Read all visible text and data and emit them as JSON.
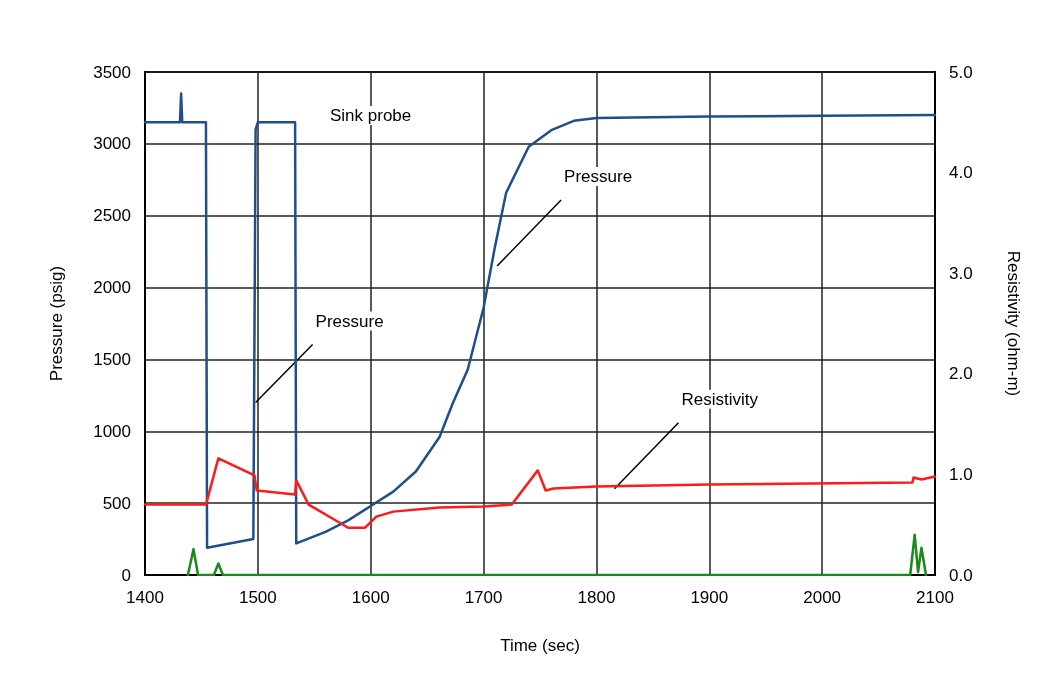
{
  "chart_data": {
    "type": "line",
    "xlabel": "Time (sec)",
    "ylabel": "Pressure (psig)",
    "y2label": "Resistivity (ohm-m)",
    "xlim": [
      1400,
      2100
    ],
    "xticks": [
      1400,
      1500,
      1600,
      1700,
      1800,
      1900,
      2000,
      2100
    ],
    "ylim": [
      0,
      3500
    ],
    "yticks": [
      0,
      500,
      1000,
      1500,
      2000,
      2500,
      3000,
      3500
    ],
    "y2lim": [
      0,
      5
    ],
    "y2ticks": [
      {
        "value": 0,
        "label": "0.0"
      },
      {
        "value": 1,
        "label": "1.0"
      },
      {
        "value": 2,
        "label": "2.0"
      },
      {
        "value": 3,
        "label": "3.0"
      },
      {
        "value": 4,
        "label": "4.0"
      },
      {
        "value": 5,
        "label": "5.0"
      }
    ],
    "grid": true,
    "marker": "none",
    "line_style": "solid",
    "annotations": [
      "Sink probe",
      {
        "text": "Pressure",
        "x": 1498,
        "y": 1200
      },
      {
        "text": "Pressure",
        "x": 1712,
        "y": 2150
      },
      {
        "text": "Resistivity",
        "x": 1816,
        "y": 600
      }
    ],
    "series": [
      {
        "color": "#1f4e8c",
        "x": [
          1400,
          1431,
          1432,
          1433,
          1454,
          1455,
          1496,
          1498,
          1500,
          1533,
          1534,
          1560,
          1580,
          1600,
          1620,
          1640,
          1661,
          1673,
          1686,
          1700,
          1710,
          1720,
          1740,
          1760,
          1780,
          1800,
          1900,
          2000,
          2100
        ],
        "values": [
          3150,
          3150,
          3350,
          3150,
          3150,
          190,
          250,
          3100,
          3150,
          3150,
          220,
          300,
          380,
          480,
          580,
          720,
          960,
          1200,
          1430,
          1860,
          2280,
          2660,
          2980,
          3095,
          3160,
          3180,
          3190,
          3195,
          3200
        ]
      },
      {
        "color": "#ff1a1a",
        "axis": "y2",
        "x": [
          1400,
          1454,
          1465,
          1497,
          1499,
          1533,
          1534,
          1545,
          1580,
          1595,
          1605,
          1620,
          1661,
          1700,
          1725,
          1748,
          1755,
          1762,
          1800,
          1900,
          2080,
          2081,
          2088,
          2100
        ],
        "values": [
          0.7,
          0.7,
          1.16,
          0.99,
          0.84,
          0.8,
          0.94,
          0.7,
          0.47,
          0.47,
          0.58,
          0.63,
          0.67,
          0.68,
          0.7,
          1.04,
          0.84,
          0.86,
          0.88,
          0.9,
          0.92,
          0.97,
          0.95,
          0.98
        ]
      },
      {
        "color": "#1a8a1a",
        "x": [
          1438,
          1443,
          1447,
          1461,
          1465,
          1469,
          2078,
          2082,
          2085,
          2088,
          2092
        ],
        "values": [
          0,
          180,
          0,
          0,
          80,
          0,
          0,
          280,
          20,
          190,
          0
        ]
      }
    ]
  }
}
